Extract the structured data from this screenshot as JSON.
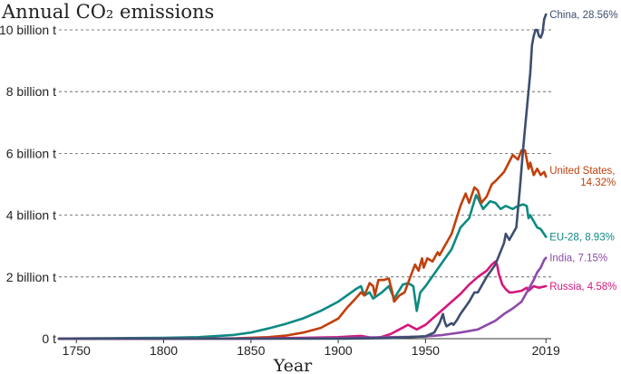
{
  "chart_data": {
    "type": "line",
    "title": "Annual CO₂ emissions",
    "xlabel": "Year",
    "ylabel": "",
    "xlim": [
      1740,
      2022
    ],
    "ylim": [
      0,
      10.5
    ],
    "x_ticks": [
      {
        "value": 1750,
        "label": "1750"
      },
      {
        "value": 1800,
        "label": "1800"
      },
      {
        "value": 1850,
        "label": "1850"
      },
      {
        "value": 1900,
        "label": "1900"
      },
      {
        "value": 1950,
        "label": "1950"
      },
      {
        "value": 2019,
        "label": "2019"
      }
    ],
    "y_ticks": [
      {
        "value": 0,
        "label": "0 t"
      },
      {
        "value": 2,
        "label": "2 billion t"
      },
      {
        "value": 4,
        "label": "4 billion t"
      },
      {
        "value": 6,
        "label": "6 billion t"
      },
      {
        "value": 8,
        "label": "8 billion t"
      },
      {
        "value": 10,
        "label": "10 billion t"
      }
    ],
    "grid": true,
    "series": [
      {
        "name": "EU-28",
        "color": "#0c8a83",
        "label_lines": [
          "EU-28, 8.93%"
        ],
        "points": [
          [
            1740,
            0.0
          ],
          [
            1750,
            0.01
          ],
          [
            1780,
            0.02
          ],
          [
            1800,
            0.03
          ],
          [
            1820,
            0.05
          ],
          [
            1840,
            0.12
          ],
          [
            1850,
            0.2
          ],
          [
            1860,
            0.33
          ],
          [
            1870,
            0.48
          ],
          [
            1880,
            0.66
          ],
          [
            1890,
            0.9
          ],
          [
            1900,
            1.2
          ],
          [
            1905,
            1.4
          ],
          [
            1910,
            1.6
          ],
          [
            1913,
            1.7
          ],
          [
            1915,
            1.4
          ],
          [
            1918,
            1.5
          ],
          [
            1920,
            1.3
          ],
          [
            1925,
            1.5
          ],
          [
            1929,
            1.7
          ],
          [
            1932,
            1.3
          ],
          [
            1937,
            1.75
          ],
          [
            1940,
            1.8
          ],
          [
            1943,
            1.7
          ],
          [
            1945,
            0.9
          ],
          [
            1947,
            1.5
          ],
          [
            1950,
            1.7
          ],
          [
            1955,
            2.1
          ],
          [
            1960,
            2.5
          ],
          [
            1965,
            2.9
          ],
          [
            1970,
            3.6
          ],
          [
            1975,
            3.9
          ],
          [
            1979,
            4.65
          ],
          [
            1980,
            4.55
          ],
          [
            1983,
            4.2
          ],
          [
            1987,
            4.45
          ],
          [
            1990,
            4.4
          ],
          [
            1993,
            4.2
          ],
          [
            1996,
            4.3
          ],
          [
            2000,
            4.2
          ],
          [
            2003,
            4.3
          ],
          [
            2006,
            4.35
          ],
          [
            2008,
            4.3
          ],
          [
            2009,
            3.9
          ],
          [
            2010,
            4.0
          ],
          [
            2012,
            3.8
          ],
          [
            2014,
            3.6
          ],
          [
            2016,
            3.55
          ],
          [
            2019,
            3.3
          ]
        ]
      },
      {
        "name": "United States",
        "color": "#c0400c",
        "label_lines": [
          "United States,",
          "14.32%"
        ],
        "points": [
          [
            1740,
            0.0
          ],
          [
            1800,
            0.0
          ],
          [
            1840,
            0.01
          ],
          [
            1860,
            0.05
          ],
          [
            1870,
            0.1
          ],
          [
            1880,
            0.2
          ],
          [
            1890,
            0.35
          ],
          [
            1900,
            0.65
          ],
          [
            1905,
            1.0
          ],
          [
            1910,
            1.3
          ],
          [
            1913,
            1.5
          ],
          [
            1915,
            1.4
          ],
          [
            1918,
            1.8
          ],
          [
            1920,
            1.7
          ],
          [
            1921,
            1.4
          ],
          [
            1923,
            1.9
          ],
          [
            1926,
            1.9
          ],
          [
            1929,
            1.95
          ],
          [
            1931,
            1.5
          ],
          [
            1932,
            1.2
          ],
          [
            1935,
            1.4
          ],
          [
            1938,
            1.5
          ],
          [
            1940,
            1.8
          ],
          [
            1944,
            2.4
          ],
          [
            1946,
            2.2
          ],
          [
            1948,
            2.6
          ],
          [
            1949,
            2.3
          ],
          [
            1951,
            2.6
          ],
          [
            1954,
            2.5
          ],
          [
            1957,
            2.8
          ],
          [
            1958,
            2.7
          ],
          [
            1960,
            2.9
          ],
          [
            1965,
            3.4
          ],
          [
            1970,
            4.3
          ],
          [
            1973,
            4.7
          ],
          [
            1975,
            4.4
          ],
          [
            1978,
            4.9
          ],
          [
            1980,
            4.8
          ],
          [
            1982,
            4.4
          ],
          [
            1985,
            4.6
          ],
          [
            1988,
            5.0
          ],
          [
            1990,
            5.1
          ],
          [
            1995,
            5.4
          ],
          [
            2000,
            5.95
          ],
          [
            2003,
            5.8
          ],
          [
            2005,
            6.1
          ],
          [
            2007,
            6.1
          ],
          [
            2009,
            5.5
          ],
          [
            2010,
            5.7
          ],
          [
            2012,
            5.3
          ],
          [
            2014,
            5.5
          ],
          [
            2016,
            5.3
          ],
          [
            2018,
            5.4
          ],
          [
            2019,
            5.25
          ]
        ]
      },
      {
        "name": "Russia",
        "color": "#d4187d",
        "label_lines": [
          "Russia, 4.58%"
        ],
        "points": [
          [
            1740,
            0.0
          ],
          [
            1800,
            0.0
          ],
          [
            1850,
            0.01
          ],
          [
            1880,
            0.03
          ],
          [
            1900,
            0.05
          ],
          [
            1913,
            0.09
          ],
          [
            1920,
            0.02
          ],
          [
            1925,
            0.06
          ],
          [
            1930,
            0.15
          ],
          [
            1935,
            0.3
          ],
          [
            1940,
            0.45
          ],
          [
            1945,
            0.3
          ],
          [
            1950,
            0.45
          ],
          [
            1955,
            0.7
          ],
          [
            1960,
            0.95
          ],
          [
            1965,
            1.2
          ],
          [
            1970,
            1.45
          ],
          [
            1975,
            1.75
          ],
          [
            1980,
            2.0
          ],
          [
            1985,
            2.2
          ],
          [
            1988,
            2.4
          ],
          [
            1990,
            2.5
          ],
          [
            1991,
            2.4
          ],
          [
            1992,
            2.1
          ],
          [
            1994,
            1.75
          ],
          [
            1996,
            1.6
          ],
          [
            1998,
            1.5
          ],
          [
            2000,
            1.5
          ],
          [
            2005,
            1.55
          ],
          [
            2008,
            1.65
          ],
          [
            2009,
            1.55
          ],
          [
            2012,
            1.7
          ],
          [
            2015,
            1.65
          ],
          [
            2019,
            1.7
          ]
        ]
      },
      {
        "name": "India",
        "color": "#8d4aaa",
        "label_lines": [
          "India, 7.15%"
        ],
        "points": [
          [
            1740,
            0.0
          ],
          [
            1850,
            0.0
          ],
          [
            1900,
            0.02
          ],
          [
            1920,
            0.04
          ],
          [
            1940,
            0.06
          ],
          [
            1950,
            0.07
          ],
          [
            1960,
            0.12
          ],
          [
            1970,
            0.2
          ],
          [
            1980,
            0.3
          ],
          [
            1990,
            0.58
          ],
          [
            1995,
            0.8
          ],
          [
            2000,
            0.98
          ],
          [
            2005,
            1.2
          ],
          [
            2008,
            1.5
          ],
          [
            2010,
            1.7
          ],
          [
            2012,
            1.9
          ],
          [
            2014,
            2.15
          ],
          [
            2016,
            2.3
          ],
          [
            2018,
            2.55
          ],
          [
            2019,
            2.62
          ]
        ]
      },
      {
        "name": "China",
        "color": "#3d4e6f",
        "label_lines": [
          "China, 28.56%"
        ],
        "points": [
          [
            1740,
            0.0
          ],
          [
            1900,
            0.0
          ],
          [
            1930,
            0.02
          ],
          [
            1950,
            0.08
          ],
          [
            1955,
            0.2
          ],
          [
            1958,
            0.5
          ],
          [
            1960,
            0.8
          ],
          [
            1961,
            0.55
          ],
          [
            1962,
            0.4
          ],
          [
            1965,
            0.5
          ],
          [
            1966,
            0.45
          ],
          [
            1968,
            0.6
          ],
          [
            1970,
            0.8
          ],
          [
            1975,
            1.2
          ],
          [
            1978,
            1.5
          ],
          [
            1980,
            1.5
          ],
          [
            1985,
            2.0
          ],
          [
            1990,
            2.4
          ],
          [
            1995,
            3.1
          ],
          [
            1996,
            3.4
          ],
          [
            1998,
            3.2
          ],
          [
            1999,
            3.3
          ],
          [
            2000,
            3.4
          ],
          [
            2002,
            3.6
          ],
          [
            2004,
            4.8
          ],
          [
            2006,
            6.2
          ],
          [
            2008,
            7.4
          ],
          [
            2010,
            8.6
          ],
          [
            2011,
            9.5
          ],
          [
            2012,
            9.8
          ],
          [
            2013,
            10.0
          ],
          [
            2014,
            10.0
          ],
          [
            2015,
            9.8
          ],
          [
            2016,
            9.75
          ],
          [
            2017,
            9.9
          ],
          [
            2018,
            10.35
          ],
          [
            2019,
            10.5
          ]
        ]
      }
    ]
  }
}
